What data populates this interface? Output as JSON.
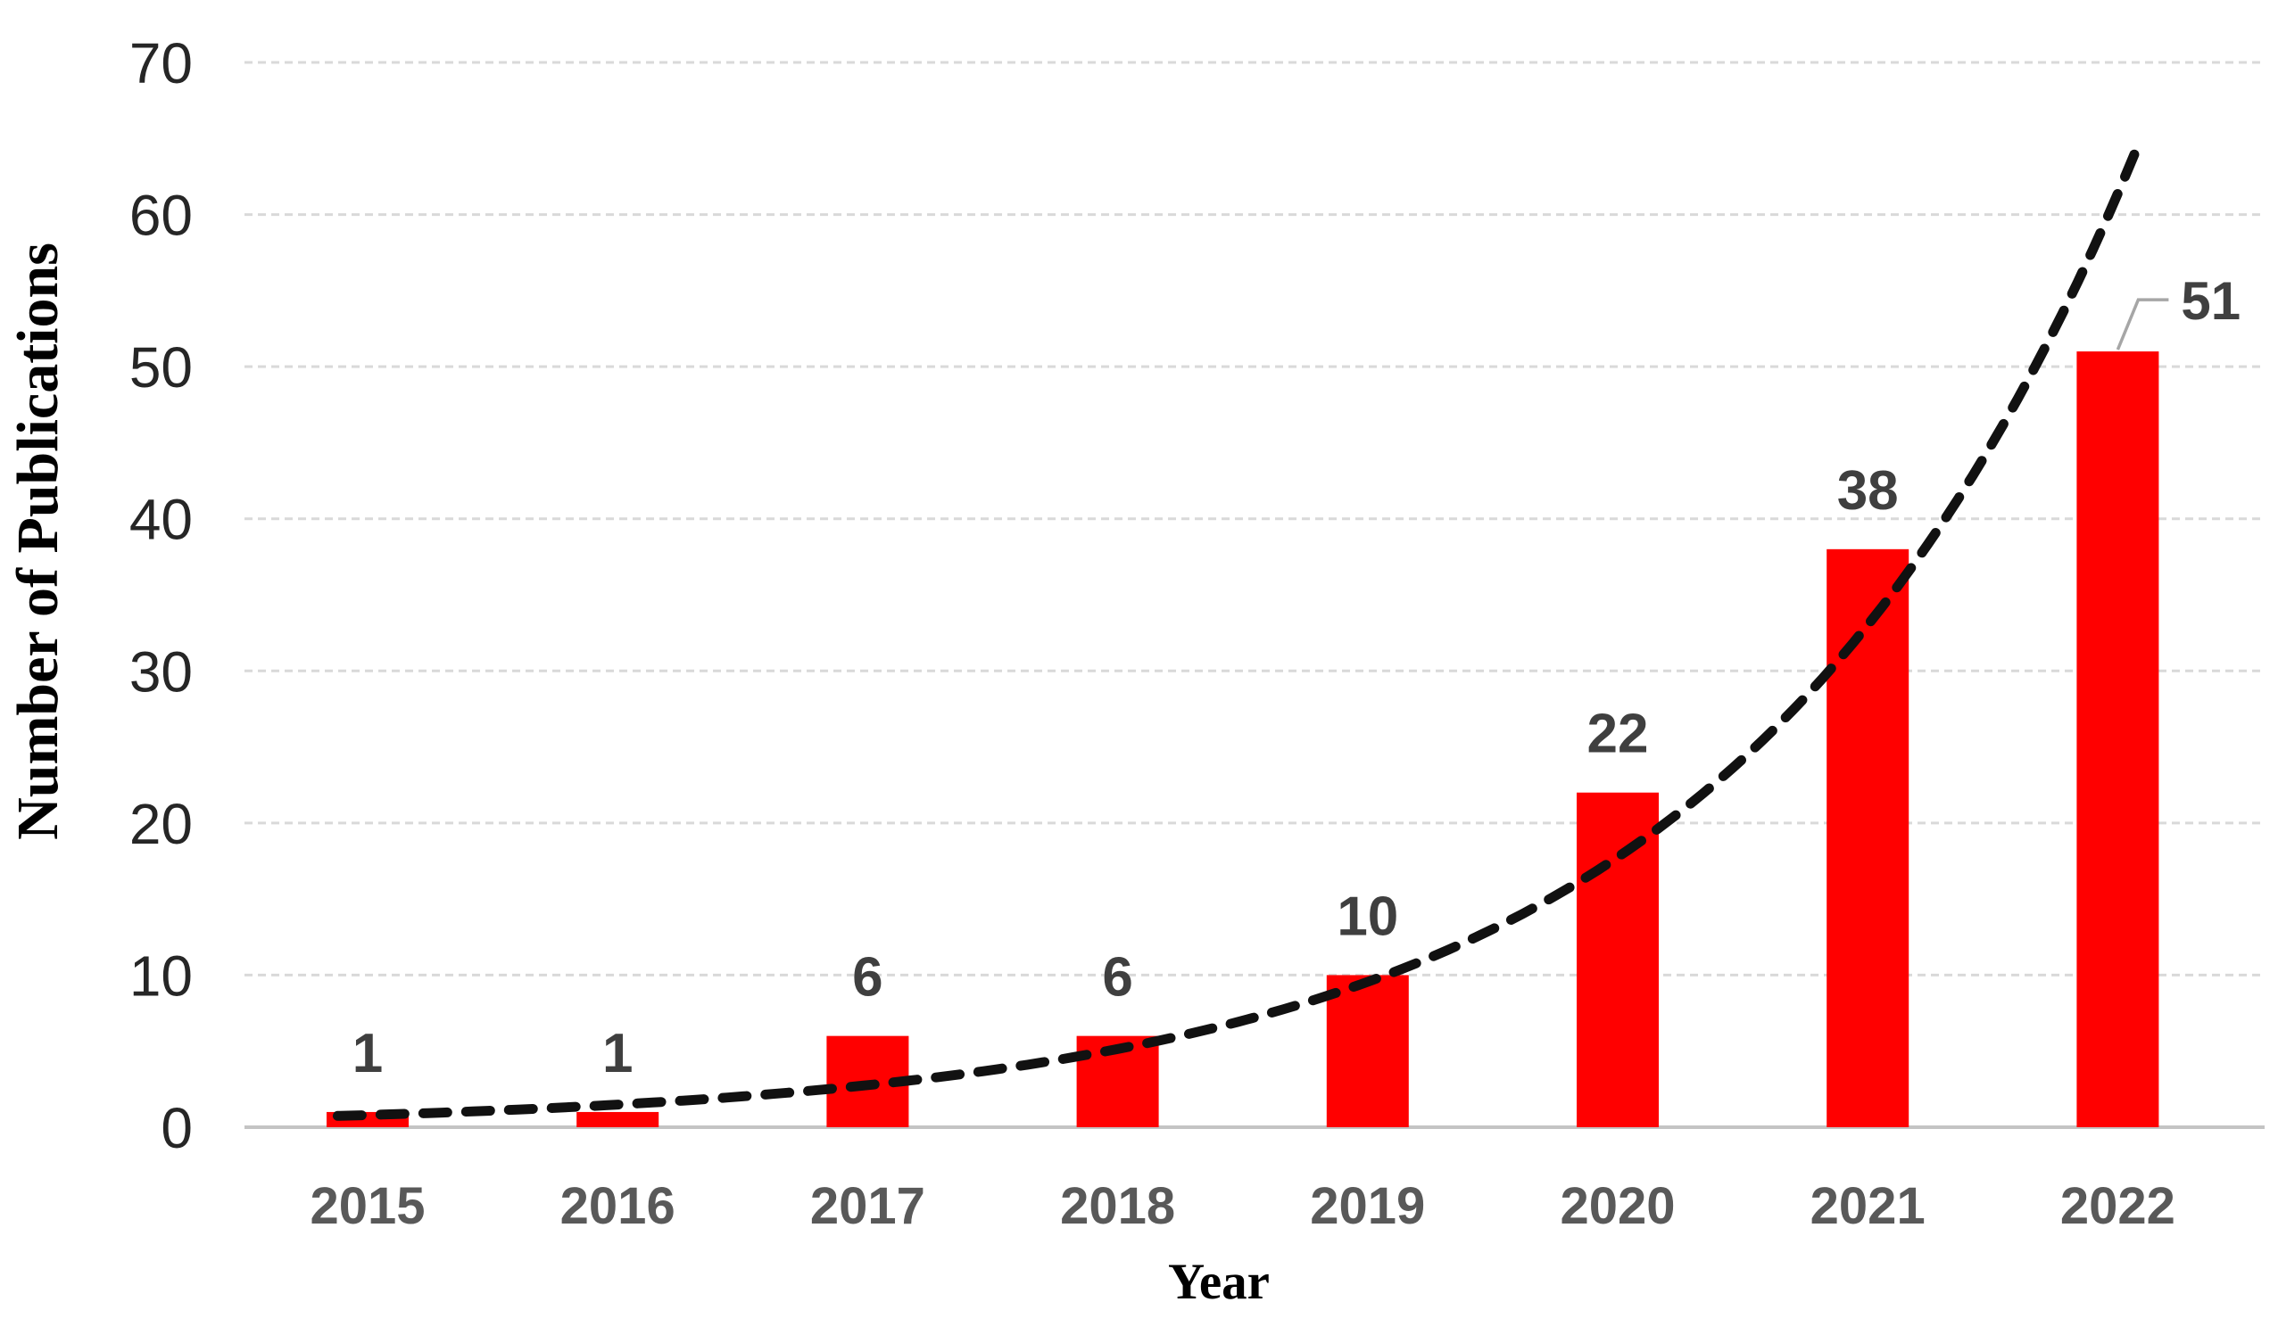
{
  "figure": {
    "background": "#ffffff"
  },
  "chart_data": {
    "type": "bar",
    "title": "",
    "xlabel": "Year",
    "ylabel": "Number of Publications",
    "categories": [
      "2015",
      "2016",
      "2017",
      "2018",
      "2019",
      "2020",
      "2021",
      "2022"
    ],
    "values": [
      1,
      1,
      6,
      6,
      10,
      22,
      38,
      51
    ],
    "data_labels": [
      "1",
      "1",
      "6",
      "6",
      "10",
      "22",
      "38",
      "51"
    ],
    "ylim": [
      0,
      70
    ],
    "yticks": [
      0,
      10,
      20,
      30,
      40,
      50,
      60,
      70
    ],
    "ytick_labels": [
      "0",
      "10",
      "20",
      "30",
      "40",
      "50",
      "60",
      "70"
    ],
    "grid": "horizontal",
    "legend": "none",
    "bar_series_name": "Number of Publications",
    "colors": {
      "bar": "#ff0000",
      "grid_line": "#d9d9d9",
      "axis_line": "#c4c4c4",
      "y_tick_text": "#262626",
      "x_tick_text": "#595959",
      "data_label_text": "#3f3f3f",
      "axis_title_text": "#000000",
      "trendline": "#111111",
      "callout_line": "#a6a6a6",
      "callout_text": "#404040"
    },
    "trendline": {
      "type": "exponential",
      "style": "dashed",
      "a": 0.8,
      "b": 0.62,
      "t_start": -0.12,
      "t_end": 7.08
    },
    "callout": {
      "category": "2022",
      "label": "51"
    }
  }
}
